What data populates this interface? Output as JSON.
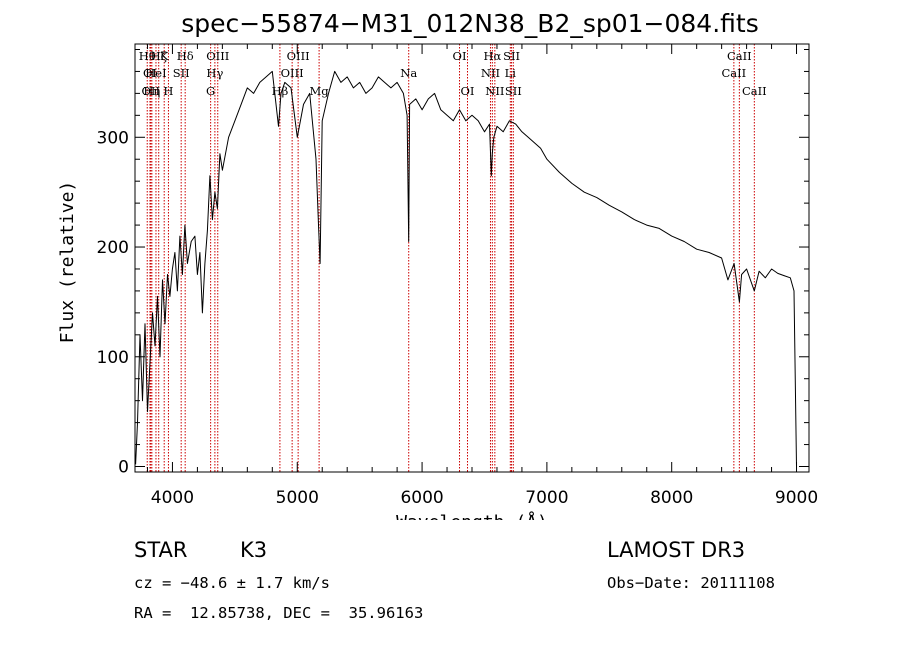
{
  "chart_data": {
    "type": "line",
    "title": "spec−55874−M31_012N38_B2_sp01−084.fits",
    "xlabel": "Wavelength (Å)",
    "ylabel": "Flux (relative)",
    "xlim": [
      3700,
      9100
    ],
    "ylim": [
      -5,
      385
    ],
    "xticks": [
      4000,
      5000,
      6000,
      7000,
      8000,
      9000
    ],
    "yticks": [
      0,
      100,
      200,
      300
    ],
    "line_color": "#000000",
    "marker_color": "#cc0000",
    "series": [
      {
        "name": "Flux",
        "x": [
          3705,
          3720,
          3740,
          3760,
          3780,
          3800,
          3820,
          3840,
          3860,
          3880,
          3900,
          3920,
          3940,
          3960,
          3980,
          4000,
          4020,
          4040,
          4060,
          4080,
          4100,
          4120,
          4150,
          4180,
          4200,
          4220,
          4240,
          4260,
          4280,
          4300,
          4320,
          4340,
          4360,
          4380,
          4400,
          4450,
          4500,
          4550,
          4600,
          4650,
          4700,
          4750,
          4800,
          4850,
          4870,
          4900,
          4950,
          5000,
          5050,
          5100,
          5150,
          5170,
          5183,
          5200,
          5250,
          5300,
          5350,
          5400,
          5450,
          5500,
          5550,
          5600,
          5650,
          5700,
          5750,
          5800,
          5850,
          5880,
          5893,
          5900,
          5950,
          6000,
          6050,
          6100,
          6150,
          6200,
          6250,
          6300,
          6350,
          6400,
          6450,
          6500,
          6540,
          6555,
          6563,
          6575,
          6600,
          6650,
          6700,
          6750,
          6800,
          6850,
          6900,
          6950,
          7000,
          7100,
          7200,
          7300,
          7400,
          7500,
          7600,
          7700,
          7800,
          7900,
          8000,
          8100,
          8200,
          8300,
          8400,
          8450,
          8500,
          8542,
          8560,
          8600,
          8662,
          8700,
          8750,
          8800,
          8850,
          8900,
          8950,
          8980,
          9000
        ],
        "values": [
          2,
          40,
          120,
          60,
          130,
          50,
          95,
          140,
          110,
          155,
          100,
          170,
          130,
          175,
          155,
          180,
          195,
          160,
          210,
          175,
          220,
          185,
          205,
          210,
          175,
          195,
          140,
          185,
          215,
          265,
          225,
          250,
          235,
          285,
          270,
          300,
          315,
          330,
          345,
          340,
          350,
          355,
          360,
          310,
          340,
          350,
          345,
          300,
          330,
          340,
          280,
          220,
          185,
          315,
          340,
          360,
          350,
          355,
          345,
          350,
          340,
          345,
          355,
          350,
          345,
          350,
          340,
          320,
          205,
          330,
          335,
          325,
          335,
          340,
          325,
          320,
          315,
          325,
          315,
          320,
          315,
          305,
          312,
          265,
          285,
          300,
          310,
          305,
          315,
          312,
          305,
          300,
          295,
          290,
          280,
          268,
          258,
          250,
          245,
          238,
          232,
          225,
          220,
          217,
          210,
          205,
          198,
          195,
          190,
          170,
          185,
          150,
          175,
          180,
          160,
          178,
          172,
          180,
          176,
          174,
          172,
          160,
          0
        ]
      }
    ],
    "line_markers": [
      {
        "wl": 3798,
        "label": "Hθ",
        "row": 1
      },
      {
        "wl": 3820,
        "label": "OI",
        "row": 2
      },
      {
        "wl": 3826,
        "label": "OII",
        "row": 3
      },
      {
        "wl": 3835,
        "label": "Hη",
        "row": 3
      },
      {
        "wl": 3868,
        "label": "HeI",
        "row": 2
      },
      {
        "wl": 3890,
        "label": "Hζ",
        "row": 1
      },
      {
        "wl": 3934,
        "label": "K",
        "row": 1
      },
      {
        "wl": 3968,
        "label": "H",
        "row": 3
      },
      {
        "wl": 4070,
        "label": "SII",
        "row": 2
      },
      {
        "wl": 4102,
        "label": "Hδ",
        "row": 1
      },
      {
        "wl": 4306,
        "label": "G",
        "row": 3
      },
      {
        "wl": 4340,
        "label": "Hγ",
        "row": 2
      },
      {
        "wl": 4363,
        "label": "OIII",
        "row": 1
      },
      {
        "wl": 4861,
        "label": "Hβ",
        "row": 3
      },
      {
        "wl": 4959,
        "label": "OIII",
        "row": 2
      },
      {
        "wl": 5007,
        "label": "OIII",
        "row": 1
      },
      {
        "wl": 5175,
        "label": "Mg",
        "row": 3
      },
      {
        "wl": 5893,
        "label": "Na",
        "row": 2
      },
      {
        "wl": 6300,
        "label": "OI",
        "row": 1
      },
      {
        "wl": 6364,
        "label": "OI",
        "row": 3
      },
      {
        "wl": 6548,
        "label": "NII",
        "row": 2
      },
      {
        "wl": 6563,
        "label": "Hα",
        "row": 1
      },
      {
        "wl": 6583,
        "label": "NII",
        "row": 3
      },
      {
        "wl": 6707,
        "label": "Li",
        "row": 2
      },
      {
        "wl": 6717,
        "label": "SII",
        "row": 1
      },
      {
        "wl": 6731,
        "label": "SII",
        "row": 3
      },
      {
        "wl": 8498,
        "label": "CaII",
        "row": 2
      },
      {
        "wl": 8542,
        "label": "CaII",
        "row": 1
      },
      {
        "wl": 8662,
        "label": "CaII",
        "row": 3
      }
    ]
  },
  "info": {
    "class_label": "STAR",
    "subclass": "K3",
    "survey": "LAMOST DR3",
    "redshift": "cz = −48.6 ± 1.7 km/s",
    "obs_date": "Obs−Date: 20111108",
    "coords": "RA =  12.85738, DEC =  35.96163"
  }
}
